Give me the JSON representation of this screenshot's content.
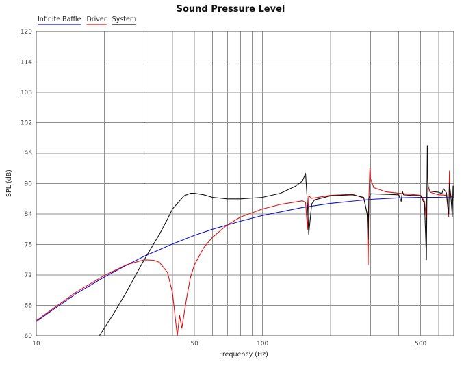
{
  "chart_data": {
    "type": "line",
    "title": "Sound Pressure Level",
    "xlabel": "Frequency (Hz)",
    "ylabel": "SPL (dB)",
    "x_scale": "log",
    "xlim": [
      10,
      700
    ],
    "ylim": [
      60,
      120
    ],
    "x_tick_labels": [
      {
        "value": 10,
        "label": "10"
      },
      {
        "value": 50,
        "label": "50"
      },
      {
        "value": 100,
        "label": "100"
      },
      {
        "value": 500,
        "label": "500"
      }
    ],
    "y_ticks": [
      60,
      66,
      72,
      78,
      84,
      90,
      96,
      102,
      108,
      114,
      120
    ],
    "grid": true,
    "legend_position": "top-left",
    "series": [
      {
        "name": "Infinite Baffle",
        "color": "#1010d0",
        "x": [
          10,
          12,
          15,
          20,
          25,
          30,
          40,
          50,
          60,
          80,
          100,
          150,
          200,
          300,
          400,
          500,
          600,
          700
        ],
        "y": [
          62.8,
          65.3,
          68.3,
          71.6,
          73.9,
          75.7,
          78.1,
          79.8,
          81.0,
          82.6,
          83.7,
          85.3,
          86.1,
          86.9,
          87.2,
          87.3,
          87.3,
          87.2
        ]
      },
      {
        "name": "Driver",
        "color": "#e01010",
        "x": [
          10,
          15,
          20,
          25,
          30,
          33,
          35,
          38,
          40,
          42,
          43,
          44,
          46,
          48,
          50,
          55,
          60,
          70,
          80,
          100,
          120,
          150,
          155,
          158,
          160,
          165,
          170,
          200,
          250,
          280,
          290,
          293,
          295,
          298,
          300,
          310,
          350,
          400,
          450,
          500,
          520,
          530,
          535,
          540,
          550,
          600,
          650,
          665,
          670,
          675,
          690,
          700
        ],
        "y": [
          63.0,
          68.6,
          71.9,
          74.0,
          75.0,
          74.9,
          74.5,
          72.5,
          68.5,
          60.0,
          64.0,
          61.5,
          67.0,
          71.5,
          74.0,
          77.4,
          79.4,
          81.9,
          83.4,
          85.0,
          85.9,
          86.6,
          86.3,
          81.0,
          87.6,
          87.1,
          87.2,
          87.7,
          87.9,
          87.2,
          84.0,
          74.0,
          87.0,
          93.0,
          91.0,
          89.2,
          88.4,
          88.1,
          87.9,
          87.7,
          86.5,
          83.0,
          93.5,
          89.5,
          88.3,
          87.8,
          87.7,
          83.5,
          92.5,
          87.5,
          87.4,
          87.3
        ]
      },
      {
        "name": "System",
        "color": "#111111",
        "x": [
          19,
          22,
          25,
          28,
          30,
          35,
          38,
          40,
          45,
          48,
          50,
          55,
          60,
          70,
          80,
          100,
          120,
          140,
          150,
          155,
          158,
          160,
          165,
          170,
          200,
          250,
          280,
          290,
          293,
          295,
          300,
          350,
          400,
          410,
          415,
          420,
          450,
          500,
          520,
          530,
          535,
          540,
          550,
          600,
          620,
          630,
          650,
          665,
          670,
          680,
          690,
          695,
          700
        ],
        "y": [
          60.0,
          64.4,
          68.6,
          72.6,
          75.0,
          80.0,
          83.0,
          85.0,
          87.6,
          88.1,
          88.1,
          87.8,
          87.3,
          87.0,
          87.0,
          87.3,
          88.1,
          89.5,
          90.5,
          92.0,
          86.0,
          80.0,
          86.0,
          86.8,
          87.6,
          87.8,
          87.3,
          84.0,
          79.0,
          87.0,
          88.0,
          87.9,
          87.8,
          86.5,
          88.5,
          87.8,
          87.7,
          87.6,
          86.0,
          75.0,
          97.5,
          88.5,
          88.5,
          88.3,
          88.0,
          89.0,
          88.2,
          84.0,
          90.0,
          87.5,
          83.5,
          89.5,
          87.0
        ]
      }
    ]
  }
}
